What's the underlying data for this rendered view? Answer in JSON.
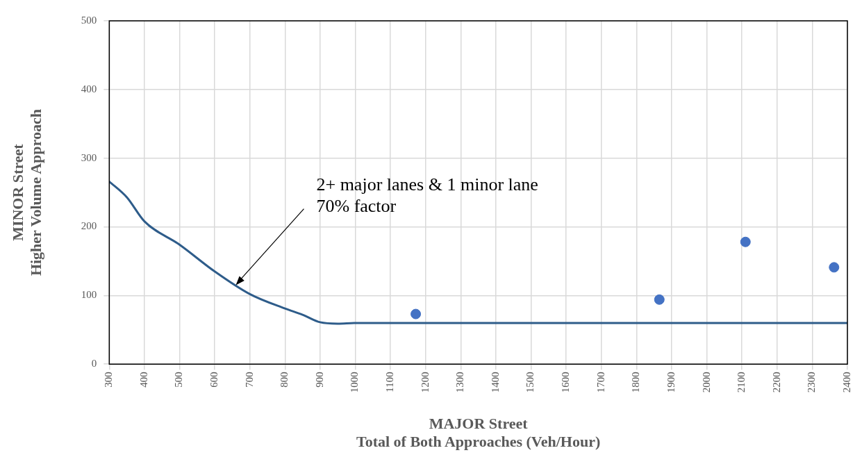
{
  "chart_data": {
    "type": "line",
    "xlabel": "MAJOR Street\nTotal of Both Approaches (Veh/Hour)",
    "ylabel": "MINOR Street\nHigher Volume Approach",
    "xlim": [
      300,
      2400
    ],
    "xticks": [
      300,
      400,
      500,
      600,
      700,
      800,
      900,
      1000,
      1100,
      1200,
      1300,
      1400,
      1500,
      1600,
      1700,
      1800,
      1900,
      2000,
      2100,
      2200,
      2300,
      2400
    ],
    "ylim": [
      0,
      500
    ],
    "yticks": [
      0,
      100,
      200,
      300,
      400,
      500
    ],
    "grid": true,
    "legend": false,
    "series": [
      {
        "type": "line",
        "color": "#2e5c8a",
        "marker": "none",
        "x": [
          300,
          350,
          400,
          500,
          600,
          700,
          800,
          850,
          900,
          950,
          1000,
          2400
        ],
        "values": [
          266,
          243,
          208,
          174,
          135,
          102,
          81,
          72,
          61,
          59,
          60,
          60
        ]
      },
      {
        "type": "scatter",
        "color": "#4472c4",
        "marker": "circle",
        "x": [
          1172,
          1865,
          2110,
          2362
        ],
        "values": [
          73,
          94,
          178,
          141
        ]
      }
    ],
    "annotations": [
      {
        "text": "2+ major lanes & 1 minor lane\n70% factor",
        "x": 660,
        "y": 115
      }
    ]
  }
}
